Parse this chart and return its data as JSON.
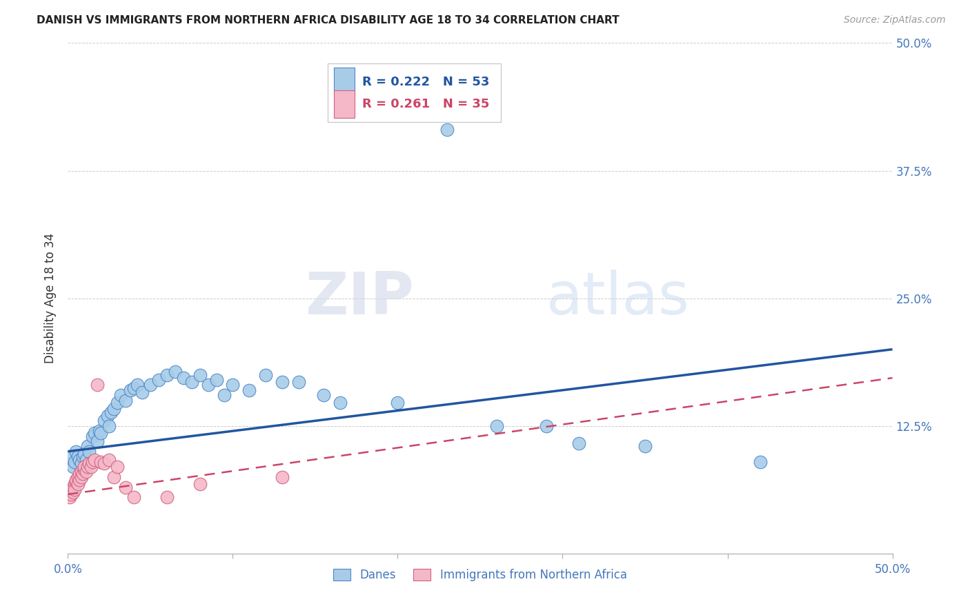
{
  "title": "DANISH VS IMMIGRANTS FROM NORTHERN AFRICA DISABILITY AGE 18 TO 34 CORRELATION CHART",
  "source": "Source: ZipAtlas.com",
  "ylabel": "Disability Age 18 to 34",
  "xlim": [
    0.0,
    0.5
  ],
  "ylim": [
    0.0,
    0.5
  ],
  "yticks": [
    0.0,
    0.125,
    0.25,
    0.375,
    0.5
  ],
  "yticklabels_right": [
    "",
    "12.5%",
    "25.0%",
    "37.5%",
    "50.0%"
  ],
  "blue_R": 0.222,
  "blue_N": 53,
  "pink_R": 0.261,
  "pink_N": 35,
  "blue_color": "#a8cce8",
  "blue_edge_color": "#4a86c8",
  "blue_line_color": "#2255a0",
  "pink_color": "#f4b8c8",
  "pink_edge_color": "#d06080",
  "pink_line_color": "#cc4466",
  "background_color": "#ffffff",
  "watermark_zip": "ZIP",
  "watermark_atlas": "atlas",
  "legend_label_blue": "Danes",
  "legend_label_pink": "Immigrants from Northern Africa",
  "blue_x": [
    0.002,
    0.003,
    0.004,
    0.005,
    0.006,
    0.007,
    0.008,
    0.009,
    0.01,
    0.011,
    0.012,
    0.013,
    0.015,
    0.016,
    0.018,
    0.019,
    0.02,
    0.022,
    0.024,
    0.025,
    0.026,
    0.028,
    0.03,
    0.032,
    0.035,
    0.038,
    0.04,
    0.042,
    0.045,
    0.05,
    0.055,
    0.06,
    0.065,
    0.07,
    0.075,
    0.08,
    0.085,
    0.09,
    0.095,
    0.1,
    0.11,
    0.12,
    0.13,
    0.14,
    0.155,
    0.165,
    0.2,
    0.26,
    0.29,
    0.31,
    0.35,
    0.42,
    0.23
  ],
  "blue_y": [
    0.095,
    0.085,
    0.09,
    0.1,
    0.095,
    0.092,
    0.088,
    0.095,
    0.098,
    0.092,
    0.105,
    0.1,
    0.115,
    0.118,
    0.11,
    0.12,
    0.118,
    0.13,
    0.135,
    0.125,
    0.138,
    0.142,
    0.148,
    0.155,
    0.15,
    0.16,
    0.162,
    0.165,
    0.158,
    0.165,
    0.17,
    0.175,
    0.178,
    0.172,
    0.168,
    0.175,
    0.165,
    0.17,
    0.155,
    0.165,
    0.16,
    0.175,
    0.168,
    0.168,
    0.155,
    0.148,
    0.148,
    0.125,
    0.125,
    0.108,
    0.105,
    0.09,
    0.415
  ],
  "pink_x": [
    0.001,
    0.002,
    0.002,
    0.003,
    0.003,
    0.004,
    0.004,
    0.005,
    0.005,
    0.006,
    0.006,
    0.007,
    0.007,
    0.008,
    0.008,
    0.009,
    0.01,
    0.01,
    0.011,
    0.012,
    0.013,
    0.014,
    0.015,
    0.016,
    0.018,
    0.02,
    0.022,
    0.025,
    0.028,
    0.03,
    0.035,
    0.04,
    0.06,
    0.08,
    0.13
  ],
  "pink_y": [
    0.055,
    0.058,
    0.062,
    0.06,
    0.065,
    0.068,
    0.063,
    0.07,
    0.072,
    0.068,
    0.075,
    0.072,
    0.078,
    0.075,
    0.08,
    0.078,
    0.082,
    0.085,
    0.08,
    0.085,
    0.088,
    0.085,
    0.09,
    0.092,
    0.165,
    0.09,
    0.088,
    0.092,
    0.075,
    0.085,
    0.065,
    0.055,
    0.055,
    0.068,
    0.075
  ],
  "blue_line_y0": 0.1,
  "blue_line_y1": 0.2,
  "pink_line_y0": 0.058,
  "pink_line_y1": 0.172
}
